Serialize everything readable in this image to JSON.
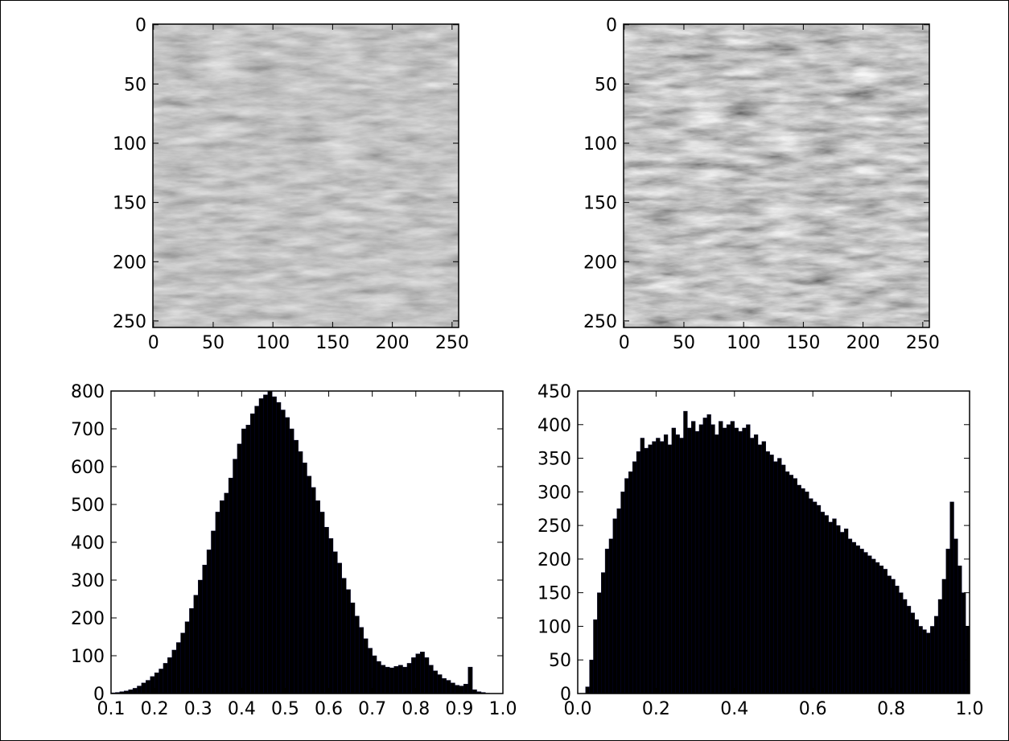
{
  "chart_data": [
    {
      "type": "image",
      "xlim": [
        -0.5,
        255.5
      ],
      "ylim": [
        255.5,
        -0.5
      ],
      "xticks": [
        0,
        50,
        100,
        150,
        200,
        250
      ],
      "yticks": [
        0,
        50,
        100,
        150,
        200,
        250
      ]
    },
    {
      "type": "image",
      "xlim": [
        -0.5,
        255.5
      ],
      "ylim": [
        255.5,
        -0.5
      ],
      "xticks": [
        0,
        50,
        100,
        150,
        200,
        250
      ],
      "yticks": [
        0,
        50,
        100,
        150,
        200,
        250
      ]
    },
    {
      "type": "histogram",
      "color": "#000000",
      "xlim": [
        0.1,
        1.0
      ],
      "ylim": [
        0,
        800
      ],
      "xticks": [
        0.1,
        0.2,
        0.3,
        0.4,
        0.5,
        0.6,
        0.7,
        0.8,
        0.9,
        {
          "value": 1,
          "label": "1.0"
        }
      ],
      "yticks": [
        0,
        100,
        200,
        300,
        400,
        500,
        600,
        700,
        800
      ],
      "bins": [
        0.1,
        0.11,
        0.12,
        0.13,
        0.14,
        0.15,
        0.16,
        0.17,
        0.18,
        0.19,
        0.2,
        0.21,
        0.22,
        0.23,
        0.24,
        0.25,
        0.26,
        0.27,
        0.28,
        0.29,
        0.3,
        0.31,
        0.32,
        0.33,
        0.34,
        0.35,
        0.36,
        0.37,
        0.38,
        0.39,
        0.4,
        0.41,
        0.42,
        0.43,
        0.44,
        0.45,
        0.46,
        0.47,
        0.48,
        0.49,
        0.5,
        0.51,
        0.52,
        0.53,
        0.54,
        0.55,
        0.56,
        0.57,
        0.58,
        0.59,
        0.6,
        0.61,
        0.62,
        0.63,
        0.64,
        0.65,
        0.66,
        0.67,
        0.68,
        0.69,
        0.7,
        0.71,
        0.72,
        0.73,
        0.74,
        0.75,
        0.76,
        0.77,
        0.78,
        0.79,
        0.8,
        0.81,
        0.82,
        0.83,
        0.84,
        0.85,
        0.86,
        0.87,
        0.88,
        0.89,
        0.9,
        0.91,
        0.92,
        0.93,
        0.94,
        0.95,
        0.96,
        0.97,
        0.98,
        0.99,
        1.0
      ],
      "values": [
        2,
        3,
        5,
        7,
        10,
        14,
        20,
        28,
        35,
        45,
        55,
        65,
        80,
        95,
        115,
        135,
        160,
        190,
        225,
        260,
        300,
        340,
        380,
        430,
        480,
        510,
        530,
        570,
        620,
        660,
        700,
        710,
        740,
        760,
        780,
        790,
        800,
        785,
        770,
        750,
        730,
        700,
        670,
        640,
        610,
        575,
        545,
        510,
        480,
        440,
        410,
        375,
        345,
        305,
        275,
        240,
        205,
        175,
        145,
        120,
        100,
        85,
        75,
        70,
        68,
        72,
        75,
        70,
        80,
        95,
        105,
        110,
        95,
        75,
        60,
        50,
        40,
        35,
        28,
        22,
        20,
        25,
        70,
        10,
        5,
        3,
        1,
        0,
        0,
        0
      ]
    },
    {
      "type": "histogram",
      "color": "#000000",
      "xlim": [
        0,
        1.0
      ],
      "ylim": [
        0,
        450
      ],
      "xticks": [
        {
          "value": 0,
          "label": "0.0"
        },
        0.2,
        0.4,
        0.6,
        0.8,
        {
          "value": 1,
          "label": "1.0"
        }
      ],
      "yticks": [
        0,
        50,
        100,
        150,
        200,
        250,
        300,
        350,
        400,
        450
      ],
      "bins": [
        0,
        0.01,
        0.02,
        0.03,
        0.04,
        0.05,
        0.06,
        0.07,
        0.08,
        0.09,
        0.1,
        0.11,
        0.12,
        0.13,
        0.14,
        0.15,
        0.16,
        0.17,
        0.18,
        0.19,
        0.2,
        0.21,
        0.22,
        0.23,
        0.24,
        0.25,
        0.26,
        0.27,
        0.28,
        0.29,
        0.3,
        0.31,
        0.32,
        0.33,
        0.34,
        0.35,
        0.36,
        0.37,
        0.38,
        0.39,
        0.4,
        0.41,
        0.42,
        0.43,
        0.44,
        0.45,
        0.46,
        0.47,
        0.48,
        0.49,
        0.5,
        0.51,
        0.52,
        0.53,
        0.54,
        0.55,
        0.56,
        0.57,
        0.58,
        0.59,
        0.6,
        0.61,
        0.62,
        0.63,
        0.64,
        0.65,
        0.66,
        0.67,
        0.68,
        0.69,
        0.7,
        0.71,
        0.72,
        0.73,
        0.74,
        0.75,
        0.76,
        0.77,
        0.78,
        0.79,
        0.8,
        0.81,
        0.82,
        0.83,
        0.84,
        0.85,
        0.86,
        0.87,
        0.88,
        0.89,
        0.9,
        0.91,
        0.92,
        0.93,
        0.94,
        0.95,
        0.96,
        0.97,
        0.98,
        0.99,
        1.0
      ],
      "values": [
        0,
        0,
        10,
        50,
        110,
        150,
        180,
        215,
        230,
        260,
        275,
        300,
        320,
        330,
        345,
        360,
        380,
        365,
        370,
        375,
        380,
        375,
        385,
        370,
        395,
        385,
        380,
        420,
        395,
        405,
        390,
        400,
        410,
        415,
        400,
        385,
        405,
        395,
        400,
        405,
        395,
        390,
        395,
        400,
        380,
        385,
        370,
        375,
        360,
        355,
        345,
        350,
        340,
        330,
        325,
        320,
        310,
        305,
        300,
        290,
        285,
        280,
        270,
        265,
        255,
        260,
        250,
        240,
        245,
        230,
        225,
        220,
        215,
        210,
        205,
        200,
        195,
        190,
        185,
        175,
        170,
        160,
        150,
        140,
        130,
        120,
        110,
        100,
        95,
        90,
        100,
        115,
        140,
        170,
        215,
        285,
        230,
        190,
        150,
        100
      ]
    }
  ]
}
